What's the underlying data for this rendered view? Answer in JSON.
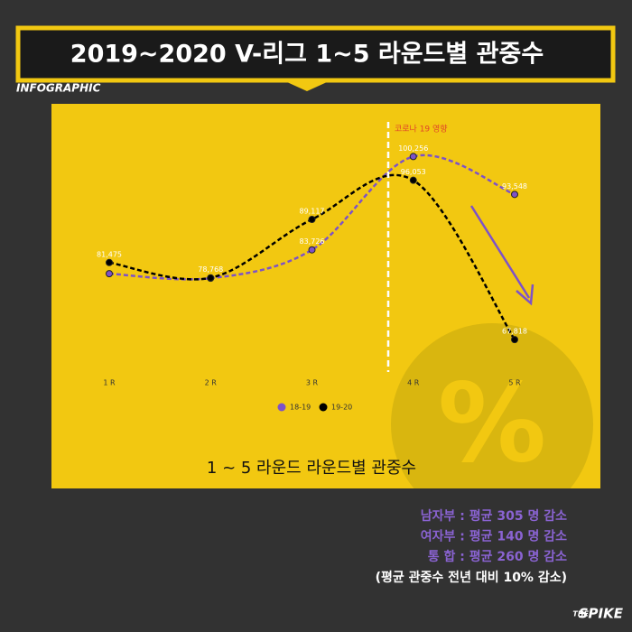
{
  "header": {
    "title": "2019~2020 V-리그 1~5 라운드별 관중수",
    "subtitle": "INFOGRAPHIC"
  },
  "chart_data": {
    "type": "line",
    "categories": [
      "1 R",
      "2 R",
      "3 R",
      "4 R",
      "5 R"
    ],
    "series": [
      {
        "name": "18-19",
        "color": "#7d52c8",
        "values": [
          79500,
          78700,
          83726,
          100256,
          93548
        ],
        "value_labels": [
          null,
          null,
          "83,726",
          "100,256",
          "93,548"
        ]
      },
      {
        "name": "19-20",
        "color": "#000000",
        "values": [
          81475,
          78768,
          89117,
          96053,
          67818
        ],
        "value_labels": [
          "81,475",
          "78,768",
          "89,117",
          "96,053",
          "67,818"
        ]
      }
    ],
    "ylim": [
      64000,
      104000
    ],
    "annotation": "코로나 19 영향",
    "caption": "1 ~ 5 라운드 라운드별 관중수"
  },
  "summary": {
    "lines": [
      "남자부 :  평균 305 명 감소",
      "여자부 : 평균 140 명 감소",
      "통  합 : 평균 260 명 감소"
    ],
    "note": "(평균 관중수 전년 대비 10% 감소)"
  },
  "logo": {
    "prefix": "THE",
    "name": "SPIKE"
  }
}
